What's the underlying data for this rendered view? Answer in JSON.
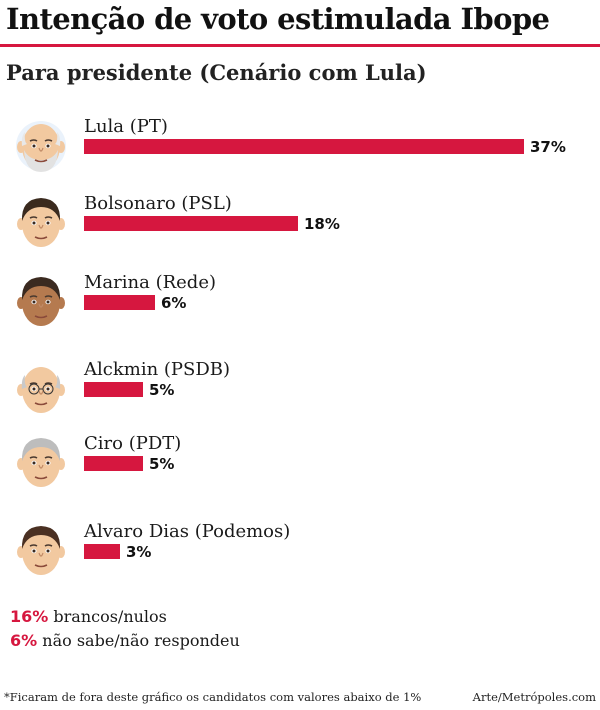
{
  "header": {
    "title": "Intenção de voto estimulada Ibope",
    "subtitle": "Para presidente (Cenário com Lula)"
  },
  "colors": {
    "accent": "#d6173f"
  },
  "chart_data": {
    "type": "bar",
    "orientation": "horizontal",
    "title": "Intenção de voto estimulada Ibope",
    "subtitle": "Para presidente (Cenário com Lula)",
    "categories": [
      "Lula (PT)",
      "Bolsonaro (PSL)",
      "Marina (Rede)",
      "Alckmin (PSDB)",
      "Ciro (PDT)",
      "Alvaro Dias (Podemos)"
    ],
    "values": [
      37,
      18,
      6,
      5,
      5,
      3
    ],
    "value_labels": [
      "37%",
      "18%",
      "6%",
      "5%",
      "5%",
      "3%"
    ],
    "unit": "%",
    "xlim": [
      0,
      37
    ],
    "grid": false,
    "legend": "none"
  },
  "others": [
    {
      "value": "16%",
      "label": "brancos/nulos"
    },
    {
      "value": "6%",
      "label": "não sabe/não respondeu"
    }
  ],
  "footer": {
    "note": "*Ficaram de fora deste gráfico os candidatos com valores abaixo de 1%",
    "credit": "Arte/Metrópoles.com"
  }
}
